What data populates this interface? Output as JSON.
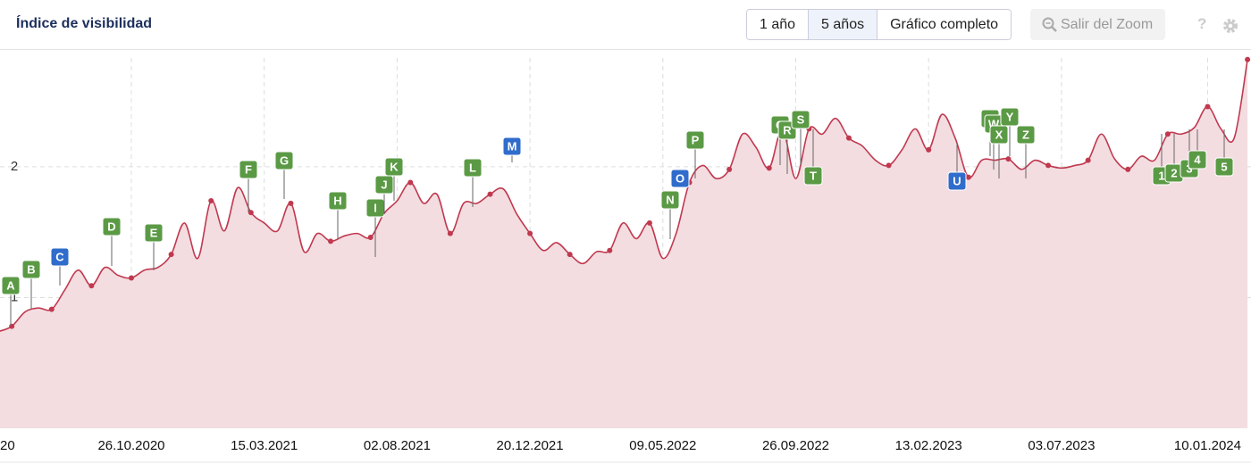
{
  "chart_data": {
    "type": "line",
    "title": "Índice de visibilidad",
    "categories": [
      "20",
      null,
      null,
      null,
      null,
      null,
      null,
      null,
      null,
      null,
      "26.10.2020",
      null,
      null,
      null,
      null,
      null,
      null,
      null,
      null,
      null,
      "15.03.2021",
      null,
      null,
      null,
      null,
      null,
      null,
      null,
      null,
      null,
      "02.08.2021",
      null,
      null,
      null,
      null,
      null,
      null,
      null,
      null,
      null,
      "20.12.2021",
      null,
      null,
      null,
      null,
      null,
      null,
      null,
      null,
      null,
      "09.05.2022",
      null,
      null,
      null,
      null,
      null,
      null,
      null,
      null,
      null,
      "26.09.2022",
      null,
      null,
      null,
      null,
      null,
      null,
      null,
      null,
      null,
      "13.02.2023",
      null,
      null,
      null,
      null,
      null,
      null,
      null,
      null,
      null,
      "03.07.2023",
      null,
      null,
      null,
      null,
      null,
      null,
      null,
      null,
      null,
      null,
      "10.01.2024",
      null,
      null,
      null
    ],
    "values": [
      0.74,
      0.78,
      0.89,
      0.92,
      0.91,
      1.06,
      1.21,
      1.09,
      1.23,
      1.17,
      1.15,
      1.21,
      1.23,
      1.33,
      1.57,
      1.3,
      1.74,
      1.51,
      1.84,
      1.65,
      1.57,
      1.51,
      1.72,
      1.35,
      1.49,
      1.43,
      1.47,
      1.49,
      1.46,
      1.64,
      1.74,
      1.88,
      1.72,
      1.79,
      1.49,
      1.72,
      1.72,
      1.79,
      1.83,
      1.64,
      1.49,
      1.36,
      1.42,
      1.33,
      1.26,
      1.35,
      1.36,
      1.57,
      1.45,
      1.57,
      1.3,
      1.49,
      1.88,
      2.01,
      1.91,
      1.98,
      2.25,
      2.15,
      1.99,
      2.29,
      1.91,
      2.29,
      2.25,
      2.37,
      2.22,
      2.16,
      2.05,
      2.01,
      2.13,
      2.29,
      2.13,
      2.4,
      2.22,
      1.92,
      2.05,
      2.05,
      2.06,
      1.98,
      2.05,
      2.01,
      1.99,
      2.01,
      2.05,
      2.25,
      2.06,
      1.98,
      2.08,
      2.05,
      2.25,
      2.25,
      2.3,
      2.46,
      2.29,
      2.22,
      2.82
    ],
    "color": "#c0394f",
    "fill_color": "#f3dde1",
    "ylim": [
      0,
      2.9
    ],
    "yticks": [
      1,
      2
    ],
    "grid": true,
    "annotations": [
      {
        "text": "A",
        "color": "#5b9a45"
      },
      {
        "text": "B",
        "color": "#5b9a45"
      },
      {
        "text": "C",
        "color": "#2f6ccb"
      },
      {
        "text": "D",
        "color": "#5b9a45"
      },
      {
        "text": "E",
        "color": "#5b9a45"
      },
      {
        "text": "F",
        "color": "#5b9a45"
      },
      {
        "text": "G",
        "color": "#5b9a45"
      },
      {
        "text": "H",
        "color": "#5b9a45"
      },
      {
        "text": "I",
        "color": "#5b9a45"
      },
      {
        "text": "J",
        "color": "#5b9a45"
      },
      {
        "text": "K",
        "color": "#5b9a45"
      },
      {
        "text": "L",
        "color": "#5b9a45"
      },
      {
        "text": "M",
        "color": "#2f6ccb"
      },
      {
        "text": "N",
        "color": "#5b9a45"
      },
      {
        "text": "O",
        "color": "#2f6ccb"
      },
      {
        "text": "P",
        "color": "#5b9a45"
      },
      {
        "text": "Q",
        "color": "#5b9a45"
      },
      {
        "text": "R",
        "color": "#5b9a45"
      },
      {
        "text": "S",
        "color": "#5b9a45"
      },
      {
        "text": "T",
        "color": "#5b9a45"
      },
      {
        "text": "U",
        "color": "#2f6ccb"
      },
      {
        "text": "V",
        "color": "#5b9a45"
      },
      {
        "text": "W",
        "color": "#5b9a45"
      },
      {
        "text": "X",
        "color": "#5b9a45"
      },
      {
        "text": "Y",
        "color": "#5b9a45"
      },
      {
        "text": "Z",
        "color": "#5b9a45"
      },
      {
        "text": "1",
        "color": "#5b9a45"
      },
      {
        "text": "2",
        "color": "#5b9a45"
      },
      {
        "text": "3",
        "color": "#5b9a45"
      },
      {
        "text": "4",
        "color": "#5b9a45"
      },
      {
        "text": "5",
        "color": "#5b9a45"
      }
    ]
  },
  "controls": {
    "range_buttons": [
      "1 año",
      "5 años",
      "Gráfico completo"
    ],
    "active": 1,
    "zoom_button": "Salir del Zoom",
    "help": "?"
  }
}
